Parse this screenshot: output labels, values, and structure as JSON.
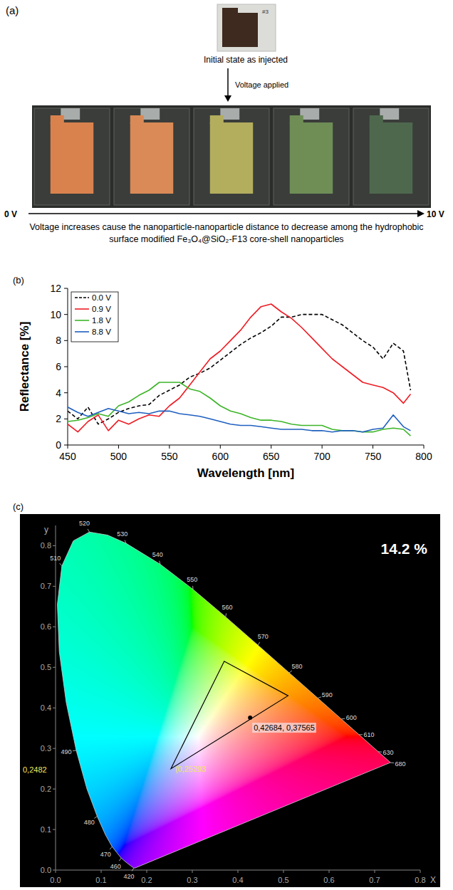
{
  "panel_a": {
    "label": "(a)",
    "photo_tag": "#3",
    "initial_caption": "Initial state as injected",
    "arrow_label": "Voltage applied",
    "swatch_colors": [
      "#d9824e",
      "#d98a56",
      "#b3ad5e",
      "#6e8e56",
      "#4e684e"
    ],
    "axis_start": "0 V",
    "axis_end": "10 V",
    "caption": "Voltage increases cause the nanoparticle-nanoparticle distance to decrease among the hydrophobic surface modified Fe₃O₄@SiO₂-F13 core-shell nanoparticles"
  },
  "chart_data": [
    {
      "type": "line",
      "panel_label": "(b)",
      "x_label": "Wavelength [nm]",
      "y_label": "Reflectance [%]",
      "x": [
        450,
        460,
        470,
        480,
        490,
        500,
        510,
        520,
        530,
        540,
        550,
        560,
        570,
        580,
        590,
        600,
        610,
        620,
        630,
        640,
        650,
        660,
        670,
        680,
        690,
        700,
        710,
        720,
        730,
        740,
        750,
        760,
        770,
        780,
        787
      ],
      "xlim": [
        450,
        800
      ],
      "xticks": [
        450,
        500,
        550,
        600,
        650,
        700,
        750,
        800
      ],
      "ylim": [
        0,
        12
      ],
      "yticks": [
        0,
        2,
        4,
        6,
        8,
        10,
        12
      ],
      "grid": false,
      "legend": "upper left",
      "series": [
        {
          "name": "0.0 V",
          "color": "#000000",
          "line_style": "dashed",
          "values": [
            2.6,
            2.0,
            2.9,
            1.6,
            2.0,
            2.5,
            2.8,
            3.0,
            3.1,
            3.8,
            4.2,
            4.6,
            5.2,
            5.5,
            5.9,
            6.5,
            7.1,
            7.7,
            8.2,
            8.6,
            9.1,
            9.8,
            9.8,
            10.0,
            10.0,
            10.0,
            9.6,
            9.2,
            8.6,
            8.0,
            7.5,
            6.6,
            7.8,
            7.2,
            4.2
          ]
        },
        {
          "name": "0.9 V",
          "color": "#ee1c24",
          "line_style": "solid",
          "values": [
            1.6,
            1.0,
            1.8,
            2.3,
            1.1,
            1.9,
            1.6,
            2.0,
            2.3,
            2.2,
            3.0,
            3.6,
            4.6,
            5.6,
            6.6,
            7.2,
            8.0,
            8.8,
            9.8,
            10.6,
            10.8,
            10.2,
            9.7,
            9.0,
            8.2,
            7.4,
            6.6,
            6.0,
            5.4,
            4.8,
            4.6,
            4.4,
            4.0,
            3.2,
            3.9
          ]
        },
        {
          "name": "1.8 V",
          "color": "#3cb528",
          "line_style": "solid",
          "values": [
            1.8,
            1.9,
            2.1,
            2.4,
            2.2,
            3.0,
            3.3,
            3.8,
            4.2,
            4.8,
            4.8,
            4.8,
            4.3,
            4.1,
            3.6,
            3.0,
            2.6,
            2.4,
            2.1,
            1.9,
            1.9,
            1.8,
            1.6,
            1.5,
            1.5,
            1.5,
            1.2,
            1.1,
            1.1,
            1.0,
            1.0,
            1.2,
            1.3,
            1.2,
            0.7
          ]
        },
        {
          "name": "8.8 V",
          "color": "#1f5fbf",
          "line_style": "solid",
          "values": [
            2.9,
            2.5,
            2.2,
            2.5,
            2.8,
            2.6,
            2.4,
            2.5,
            2.4,
            2.6,
            2.6,
            2.4,
            2.3,
            2.2,
            2.0,
            1.8,
            1.6,
            1.5,
            1.5,
            1.4,
            1.3,
            1.2,
            1.2,
            1.2,
            1.1,
            1.1,
            1.0,
            1.1,
            1.1,
            1.0,
            1.2,
            1.3,
            2.3,
            1.4,
            1.1
          ]
        }
      ]
    },
    {
      "type": "chromaticity",
      "panel_label": "(c)",
      "x_label": "X",
      "y_label": "y",
      "xlim": [
        0,
        0.8
      ],
      "xticks": [
        {
          "value": 0,
          "label": "0.0"
        },
        0.1,
        0.2,
        0.3,
        0.4,
        0.5,
        0.6,
        0.7,
        0.8
      ],
      "ylim": [
        0,
        0.85
      ],
      "yticks": [
        {
          "value": 0,
          "label": "0.0"
        },
        0.1,
        0.2,
        0.3,
        0.4,
        0.5,
        0.6,
        0.7,
        0.8
      ],
      "grid": false,
      "locus": {
        "wavelength": [
          null,
          420,
          null,
          null,
          460,
          470,
          null,
          480,
          null,
          490,
          null,
          null,
          null,
          510,
          null,
          520,
          null,
          530,
          540,
          550,
          560,
          570,
          580,
          590,
          600,
          610,
          null,
          630,
          null,
          680
        ],
        "x": [
          0.1741,
          0.1714,
          0.1644,
          0.1566,
          0.144,
          0.1241,
          0.1096,
          0.0913,
          0.0687,
          0.0454,
          0.0235,
          0.0082,
          0.0039,
          0.0139,
          0.0389,
          0.0743,
          0.1142,
          0.1547,
          0.2296,
          0.3016,
          0.3731,
          0.4441,
          0.5125,
          0.5752,
          0.627,
          0.6658,
          0.6915,
          0.7079,
          0.719,
          0.7347
        ],
        "y": [
          0.005,
          0.0051,
          0.0109,
          0.0177,
          0.0297,
          0.0578,
          0.0868,
          0.1327,
          0.2007,
          0.295,
          0.4127,
          0.5384,
          0.6548,
          0.7502,
          0.812,
          0.8338,
          0.8262,
          0.8059,
          0.7543,
          0.6923,
          0.6245,
          0.5547,
          0.4866,
          0.4242,
          0.3725,
          0.334,
          0.3083,
          0.292,
          0.2809,
          0.2653
        ]
      },
      "triangle": {
        "x": [
          0.253,
          0.37,
          0.51
        ],
        "y": [
          0.25,
          0.515,
          0.43
        ]
      },
      "point": {
        "x": 0.42684,
        "y": 0.37565,
        "label": "0,42684, 0,37565"
      },
      "annotations": [
        {
          "text": "14.2 %"
        },
        {
          "text": "(0,25293",
          "x": 0.253,
          "y": 0.25
        },
        {
          "text": "0,2482",
          "y": 0.2482
        }
      ]
    }
  ]
}
